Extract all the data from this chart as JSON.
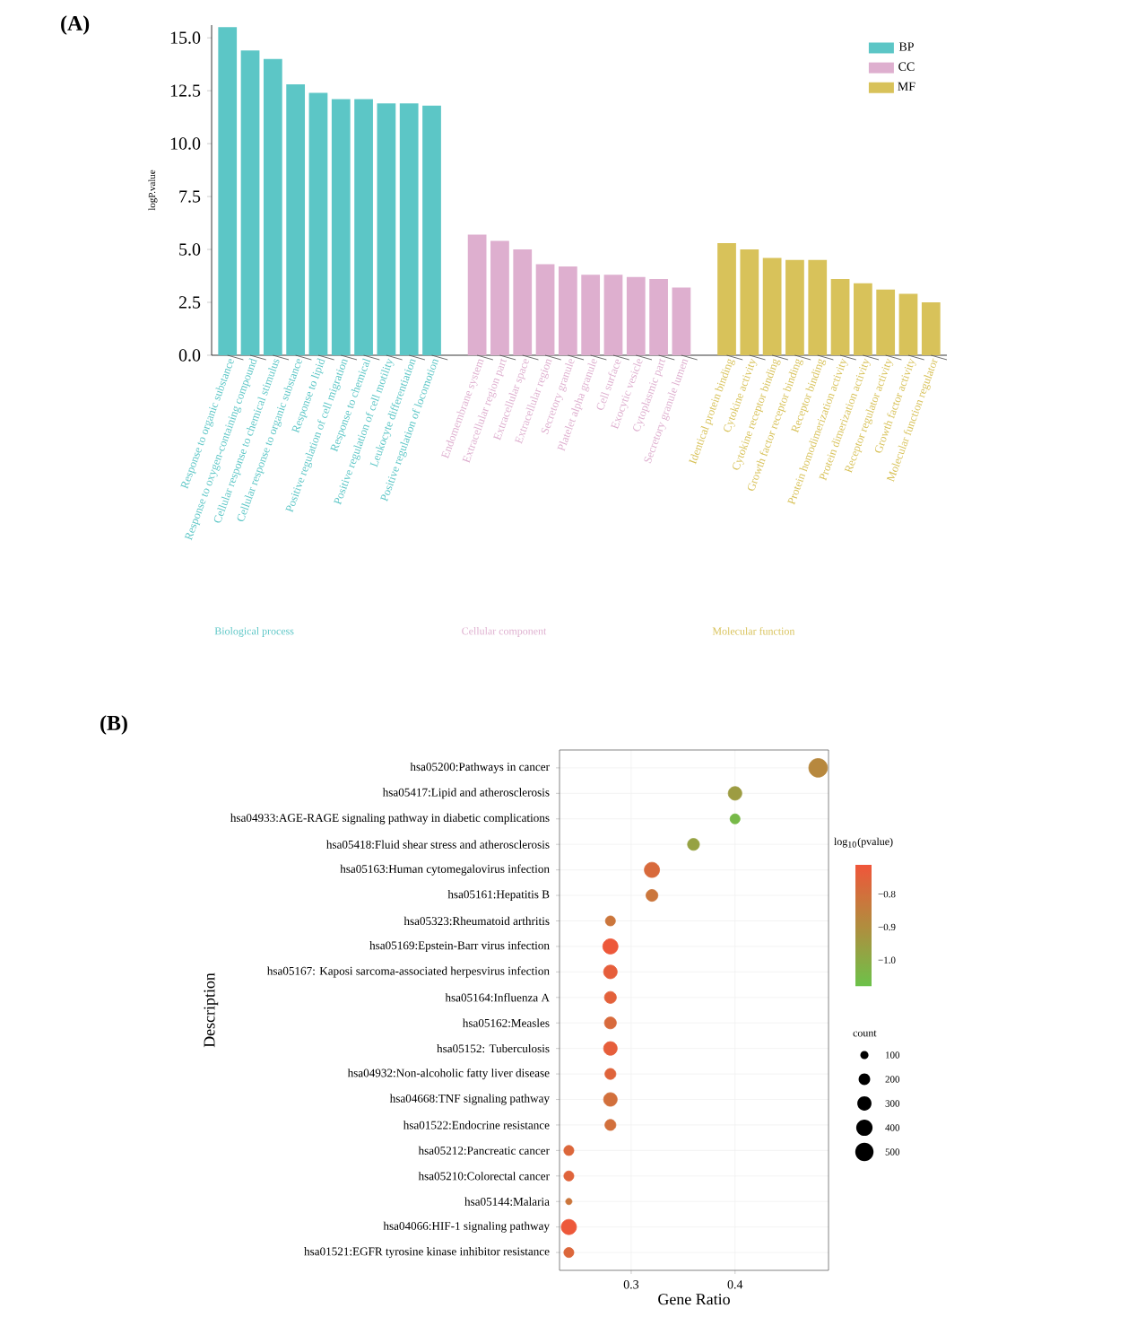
{
  "chart_data": [
    {
      "type": "bar",
      "title": "(A)",
      "ylabel": "logP.value",
      "categories": [
        "Response to organic substance",
        "Response to oxygen-containing compound",
        "Cellular response to chemical stimulus",
        "Cellular response to organic substance",
        "Response to lipid",
        "Positive regulation of cell migration",
        "Response to chemical",
        "Positive regulation of cell motility",
        "Leukocyte differentiation",
        "Positive regulation of locomotion",
        "Endomembrane system",
        "Extracellular region part",
        "Extracellular space",
        "Extracellular region",
        "Secretory granule",
        "Platelet alpha granule",
        "Cell surface",
        "Exocytic vesicle",
        "Cytoplasmic part",
        "Secretory granule lumen",
        "Identical protein binding",
        "Cytokine activity",
        "Cytokine receptor binding",
        "Growth factor receptor binding",
        "Receptor binding",
        "Protein homodimerization activity",
        "Protein dimerization activity",
        "Receptor regulator activity",
        "Growth factor activity",
        "Molecular function regulator"
      ],
      "series": [
        {
          "name": "BP",
          "color": "#5cc6c6",
          "values": [
            15.5,
            14.4,
            14.0,
            12.8,
            12.4,
            12.1,
            12.1,
            11.9,
            11.9,
            11.8,
            null,
            null,
            null,
            null,
            null,
            null,
            null,
            null,
            null,
            null,
            null,
            null,
            null,
            null,
            null,
            null,
            null,
            null,
            null,
            null
          ]
        },
        {
          "name": "CC",
          "color": "#deafcf",
          "values": [
            null,
            null,
            null,
            null,
            null,
            null,
            null,
            null,
            null,
            null,
            5.7,
            5.4,
            5.0,
            4.3,
            4.2,
            3.8,
            3.8,
            3.7,
            3.6,
            3.2,
            null,
            null,
            null,
            null,
            null,
            null,
            null,
            null,
            null,
            null
          ]
        },
        {
          "name": "MF",
          "color": "#d8c25a",
          "values": [
            null,
            null,
            null,
            null,
            null,
            null,
            null,
            null,
            null,
            null,
            null,
            null,
            null,
            null,
            null,
            null,
            null,
            null,
            null,
            null,
            5.3,
            5.0,
            4.6,
            4.5,
            4.5,
            3.6,
            3.4,
            3.1,
            2.9,
            2.5
          ]
        }
      ],
      "ylim": [
        0,
        15.6
      ],
      "yticks": [
        {
          "value": 0,
          "label": "0.0"
        },
        {
          "value": 2.5,
          "label": "2.5"
        },
        {
          "value": 5,
          "label": "5.0"
        },
        {
          "value": 7.5,
          "label": "7.5"
        },
        {
          "value": 10,
          "label": "10.0"
        },
        {
          "value": 12.5,
          "label": "12.5"
        },
        {
          "value": 15,
          "label": "15.0"
        }
      ],
      "legend": "top right",
      "annotations": [
        "Biological process",
        "Cellular component",
        "Molecular function"
      ]
    },
    {
      "type": "bubble",
      "title": "(B)",
      "xlabel": "Gene Ratio",
      "ylabel": "Description",
      "orientation": "horizontal",
      "categories": [
        "hsa05200:Pathways in cancer",
        "hsa05417:Lipid and atherosclerosis",
        "hsa04933:AGE-RAGE signaling pathway in diabetic complications",
        "hsa05418:Fluid shear stress and atherosclerosis",
        "hsa05163:Human cytomegalovirus infection",
        "hsa05161:Hepatitis B",
        "hsa05323:Rheumatoid arthritis",
        "hsa05169:Epstein-Barr virus infection",
        "hsa05167: Kaposi sarcoma-associated herpesvirus infection",
        "hsa05164:Influenza A",
        "hsa05162:Measles",
        "hsa05152: Tuberculosis",
        "hsa04932:Non-alcoholic fatty liver disease",
        "hsa04668:TNF signaling pathway",
        "hsa01522:Endocrine resistance",
        "hsa05212:Pancreatic cancer",
        "hsa05210:Colorectal cancer",
        "hsa05144:Malaria",
        "hsa04066:HIF-1 signaling pathway",
        "hsa01521:EGFR tyrosine kinase inhibitor resistance"
      ],
      "values": [
        0.48,
        0.4,
        0.4,
        0.36,
        0.32,
        0.32,
        0.28,
        0.28,
        0.28,
        0.28,
        0.28,
        0.28,
        0.28,
        0.28,
        0.28,
        0.24,
        0.24,
        0.24,
        0.24,
        0.24
      ],
      "sizes": [
        520,
        275,
        150,
        210,
        345,
        210,
        150,
        345,
        275,
        210,
        210,
        275,
        180,
        275,
        180,
        150,
        150,
        60,
        345,
        150
      ],
      "cvalues": [
        -0.88,
        -0.95,
        -1.05,
        -0.97,
        -0.78,
        -0.82,
        -0.82,
        -0.72,
        -0.74,
        -0.75,
        -0.78,
        -0.74,
        -0.76,
        -0.8,
        -0.8,
        -0.77,
        -0.76,
        -0.82,
        -0.72,
        -0.77
      ],
      "xlim": [
        0.231,
        0.49
      ],
      "xticks": [
        0.3,
        0.4
      ],
      "grid": true,
      "clabel": "log$_{10}$(pvalue)",
      "clim": [
        -1.08,
        -0.71
      ],
      "cticks": [
        {
          "value": -0.8,
          "label": "−0.8"
        },
        {
          "value": -0.9,
          "label": "−0.9"
        },
        {
          "value": -1.0,
          "label": "−1.0"
        }
      ],
      "legend_title": "count",
      "size_legend": [
        100,
        200,
        300,
        400,
        500
      ]
    }
  ]
}
